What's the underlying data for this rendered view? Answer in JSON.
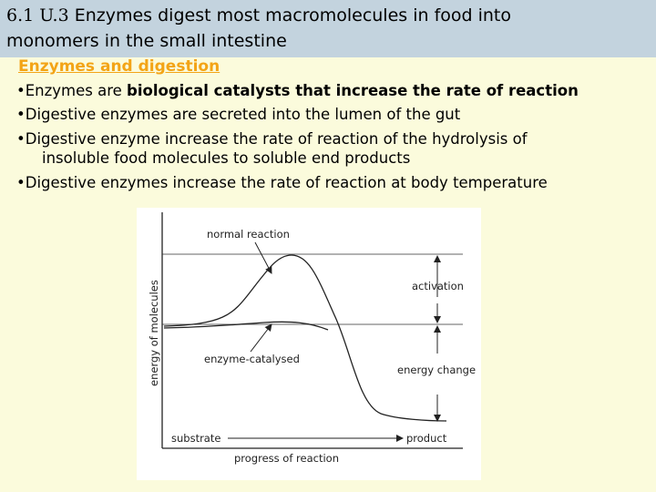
{
  "header": {
    "number": "6.1 U.3",
    "title_line1": "Enzymes digest most macromolecules in food into",
    "title_line2": "monomers in the small intestine"
  },
  "heading": "Enzymes and digestion",
  "bullets": {
    "b1_normal": "Enzymes are ",
    "b1_bold": "biological catalysts that increase the rate of reaction",
    "b2": "Digestive enzymes are secreted into the lumen of the gut",
    "b3_line1": "Digestive enzyme increase the rate of reaction of the hydrolysis of",
    "b3_line2": "insoluble food molecules to soluble end products",
    "b4": "Digestive enzymes increase the rate of reaction at body temperature",
    "marker": "•"
  },
  "diagram": {
    "ylabel": "energy of molecules",
    "xlabel": "progress of reaction",
    "label_normal": "normal reaction",
    "label_enzyme": "enzyme-catalysed",
    "label_activation": "activation",
    "label_energy_change": "energy change",
    "label_substrate": "substrate",
    "label_product": "product"
  }
}
